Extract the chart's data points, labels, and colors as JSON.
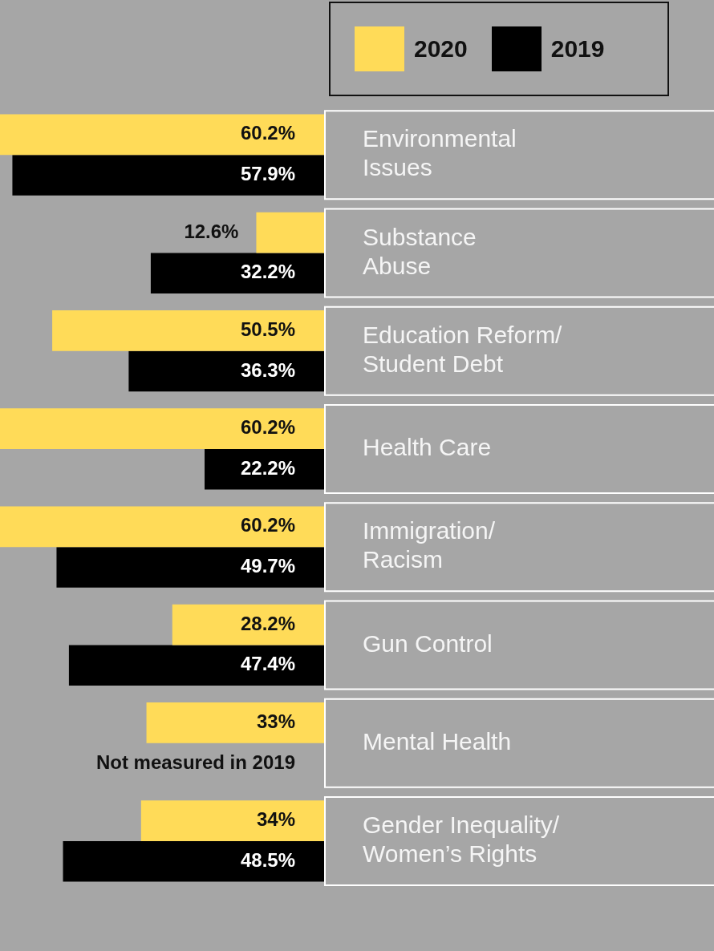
{
  "chart_data": {
    "type": "bar",
    "orientation": "horizontal",
    "categories": [
      "Environmental Issues",
      "Substance Abuse",
      "Education Reform/ Student Debt",
      "Health Care",
      "Immigration/ Racism",
      "Gun Control",
      "Mental Health",
      "Gender Inequality/ Women’s Rights"
    ],
    "series": [
      {
        "name": "2020",
        "color": "#ffdb58",
        "values": [
          60.2,
          12.6,
          50.5,
          60.2,
          60.2,
          28.2,
          33,
          34
        ],
        "value_labels": [
          "60.2%",
          "12.6%",
          "50.5%",
          "60.2%",
          "60.2%",
          "28.2%",
          "33%",
          "34%"
        ]
      },
      {
        "name": "2019",
        "color": "#000000",
        "values": [
          57.9,
          32.2,
          36.3,
          22.2,
          49.7,
          47.4,
          null,
          48.5
        ],
        "value_labels": [
          "57.9%",
          "32.2%",
          "36.3%",
          "22.2%",
          "49.7%",
          "47.4%",
          null,
          "48.5%"
        ]
      }
    ],
    "legend": "top right",
    "annotations": [
      {
        "text": "Not measured in 2019",
        "y": "Mental Health"
      }
    ]
  }
}
